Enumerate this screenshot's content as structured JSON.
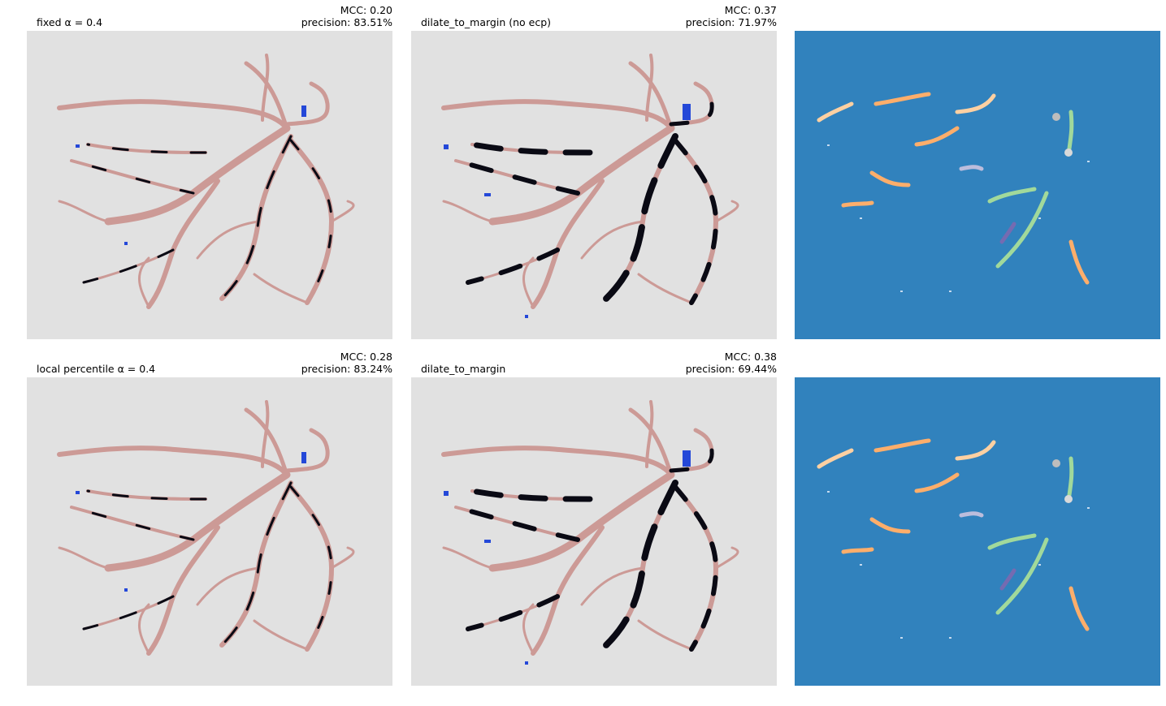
{
  "panels": [
    {
      "title": "fixed α = 0.4",
      "mcc": "MCC: 0.20",
      "precision": "precision: 83.51%"
    },
    {
      "title": "dilate_to_margin (no ecp)",
      "mcc": "MCC: 0.37",
      "precision": "precision: 71.97%"
    },
    {
      "title": "local percentile α = 0.4",
      "mcc": "MCC: 0.28",
      "precision": "precision: 83.24%"
    },
    {
      "title": "dilate_to_margin",
      "mcc": "MCC: 0.38",
      "precision": "precision: 69.44%"
    }
  ]
}
